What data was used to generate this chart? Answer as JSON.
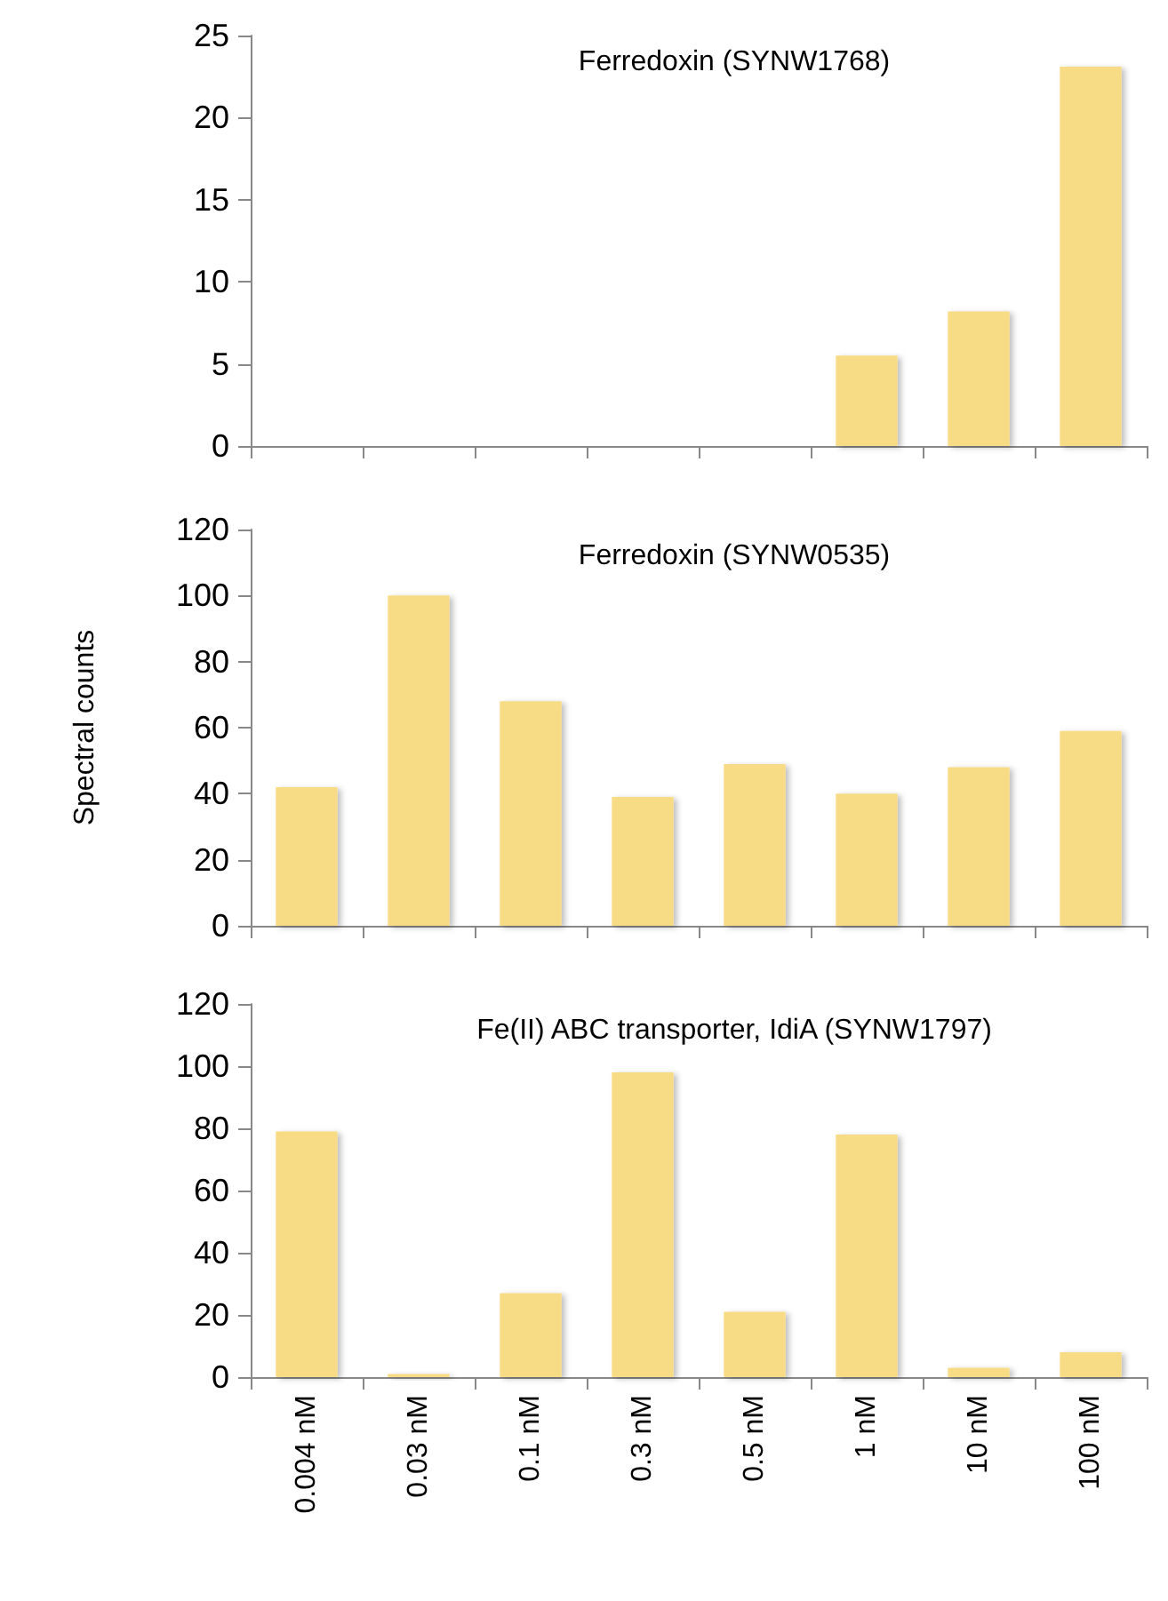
{
  "chart_data": [
    {
      "type": "bar",
      "title": "Ferredoxin (SYNW1768)",
      "categories": [
        null,
        null,
        null,
        null,
        null,
        null,
        null,
        null
      ],
      "color": "#f7dc85",
      "values": [
        0,
        0,
        0,
        0,
        0,
        5.5,
        8.2,
        23.1
      ],
      "ylim": [
        0,
        25
      ],
      "yticks": [
        0,
        5,
        10,
        15,
        20,
        25
      ],
      "grid": false,
      "tick_labels": "y"
    },
    {
      "type": "bar",
      "title": "Ferredoxin (SYNW0535)",
      "ylabel": "Spectral counts",
      "categories": [
        null,
        null,
        null,
        null,
        null,
        null,
        null,
        null
      ],
      "color": "#f7dc85",
      "values": [
        42,
        100,
        68,
        39,
        49,
        40,
        48,
        59
      ],
      "ylim": [
        0,
        120
      ],
      "yticks": [
        0,
        20,
        40,
        60,
        80,
        100,
        120
      ],
      "grid": false,
      "tick_labels": "y"
    },
    {
      "type": "bar",
      "title": "Fe(II) ABC transporter, IdiA (SYNW1797)",
      "categories": [
        "0.004 nM",
        "0.03 nM",
        "0.1 nM",
        "0.3 nM",
        "0.5 nM",
        "1 nM",
        "10 nM",
        "100 nM"
      ],
      "color": "#f7dc85",
      "values": [
        79,
        1,
        27,
        98,
        21,
        78,
        3,
        8
      ],
      "ylim": [
        0,
        120
      ],
      "yticks": [
        0,
        20,
        40,
        60,
        80,
        100,
        120
      ],
      "grid": false
    }
  ]
}
